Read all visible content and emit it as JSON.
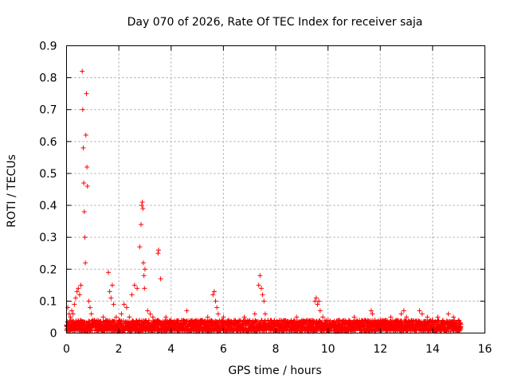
{
  "chart_data": {
    "type": "scatter",
    "title": "Day 070 of 2026, Rate Of TEC Index for receiver saja",
    "xlabel": "GPS time / hours",
    "ylabel": "ROTI / TECUs",
    "xlim": [
      0,
      16
    ],
    "ylim": [
      0,
      0.9
    ],
    "xticks": [
      0,
      2,
      4,
      6,
      8,
      10,
      12,
      14,
      16
    ],
    "xtick_labels": [
      "0",
      "2",
      "4",
      "6",
      "8",
      "10",
      "12",
      "14",
      "16"
    ],
    "yticks": [
      0,
      0.1,
      0.2,
      0.3,
      0.4,
      0.5,
      0.6,
      0.7,
      0.8,
      0.9
    ],
    "ytick_labels": [
      "0",
      "0.1",
      "0.2",
      "0.3",
      "0.4",
      "0.5",
      "0.6",
      "0.7",
      "0.8",
      "0.9"
    ],
    "grid": true,
    "marker": "+",
    "color": "#ff0000",
    "series": [
      {
        "name": "ROTI",
        "x": [
          0.05,
          0.1,
          0.15,
          0.2,
          0.25,
          0.3,
          0.35,
          0.4,
          0.45,
          0.5,
          0.55,
          0.6,
          0.62,
          0.64,
          0.66,
          0.68,
          0.7,
          0.72,
          0.74,
          0.76,
          0.78,
          0.8,
          0.85,
          0.9,
          0.95,
          1.0,
          1.1,
          1.2,
          1.3,
          1.4,
          1.5,
          1.6,
          1.65,
          1.7,
          1.75,
          1.8,
          1.9,
          2.0,
          2.1,
          2.2,
          2.3,
          2.4,
          2.5,
          2.6,
          2.7,
          2.8,
          2.85,
          2.88,
          2.9,
          2.92,
          2.94,
          2.96,
          2.98,
          3.0,
          3.1,
          3.2,
          3.3,
          3.4,
          3.5,
          3.52,
          3.6,
          3.8,
          4.0,
          4.2,
          4.4,
          4.6,
          4.8,
          5.0,
          5.2,
          5.4,
          5.6,
          5.65,
          5.7,
          5.75,
          5.8,
          6.0,
          6.2,
          6.4,
          6.6,
          6.8,
          7.0,
          7.2,
          7.35,
          7.4,
          7.45,
          7.5,
          7.55,
          7.6,
          7.8,
          8.0,
          8.2,
          8.4,
          8.6,
          8.8,
          9.0,
          9.2,
          9.4,
          9.5,
          9.55,
          9.6,
          9.65,
          9.7,
          9.8,
          10.0,
          10.2,
          10.4,
          10.6,
          10.8,
          11.0,
          11.2,
          11.4,
          11.6,
          11.65,
          11.7,
          11.8,
          12.0,
          12.2,
          12.4,
          12.6,
          12.8,
          12.9,
          13.0,
          13.2,
          13.4,
          13.5,
          13.6,
          13.8,
          14.0,
          14.2,
          14.4,
          14.6,
          14.8,
          15.0
        ],
        "y": [
          0.08,
          0.06,
          0.05,
          0.07,
          0.06,
          0.09,
          0.11,
          0.13,
          0.14,
          0.12,
          0.15,
          0.82,
          0.7,
          0.58,
          0.47,
          0.38,
          0.3,
          0.22,
          0.62,
          0.75,
          0.52,
          0.46,
          0.1,
          0.08,
          0.06,
          0.04,
          0.03,
          0.02,
          0.03,
          0.05,
          0.04,
          0.19,
          0.13,
          0.11,
          0.15,
          0.09,
          0.05,
          0.04,
          0.06,
          0.09,
          0.08,
          0.05,
          0.12,
          0.15,
          0.14,
          0.27,
          0.34,
          0.4,
          0.41,
          0.39,
          0.22,
          0.18,
          0.14,
          0.2,
          0.07,
          0.06,
          0.05,
          0.04,
          0.25,
          0.26,
          0.17,
          0.05,
          0.04,
          0.03,
          0.04,
          0.07,
          0.04,
          0.03,
          0.04,
          0.05,
          0.12,
          0.13,
          0.1,
          0.08,
          0.06,
          0.05,
          0.04,
          0.03,
          0.04,
          0.05,
          0.04,
          0.06,
          0.15,
          0.18,
          0.14,
          0.12,
          0.1,
          0.06,
          0.04,
          0.03,
          0.04,
          0.03,
          0.04,
          0.05,
          0.03,
          0.04,
          0.04,
          0.1,
          0.11,
          0.09,
          0.1,
          0.07,
          0.05,
          0.04,
          0.03,
          0.04,
          0.03,
          0.04,
          0.05,
          0.04,
          0.04,
          0.03,
          0.07,
          0.06,
          0.04,
          0.03,
          0.04,
          0.05,
          0.04,
          0.06,
          0.07,
          0.05,
          0.04,
          0.03,
          0.07,
          0.06,
          0.05,
          0.04,
          0.05,
          0.04,
          0.06,
          0.05,
          0.04
        ],
        "baseline_band": {
          "from_x": 0,
          "to_x": 15.1,
          "y_min": 0.005,
          "y_max": 0.04
        }
      }
    ]
  }
}
